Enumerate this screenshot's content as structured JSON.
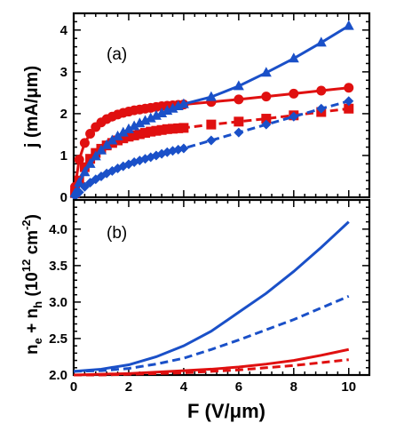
{
  "chart_data": [
    {
      "type": "line",
      "panel_label": "(a)",
      "ylabel": "j  (mA/μm)",
      "xlim": [
        0,
        10.75
      ],
      "ylim": [
        0,
        4.4
      ],
      "yticks": [
        0,
        1,
        2,
        3,
        4
      ],
      "series": [
        {
          "color": "#e01010",
          "marker": "circle",
          "line": "solid",
          "dense": [
            [
              0.05,
              0.25
            ],
            [
              0.2,
              0.9
            ],
            [
              0.4,
              1.3
            ],
            [
              0.6,
              1.52
            ],
            [
              0.8,
              1.68
            ],
            [
              1.0,
              1.79
            ],
            [
              1.2,
              1.87
            ],
            [
              1.4,
              1.93
            ],
            [
              1.6,
              1.98
            ],
            [
              1.8,
              2.02
            ],
            [
              2.0,
              2.05
            ],
            [
              2.2,
              2.08
            ],
            [
              2.4,
              2.1
            ],
            [
              2.6,
              2.12
            ],
            [
              2.8,
              2.14
            ],
            [
              3.0,
              2.16
            ],
            [
              3.2,
              2.18
            ],
            [
              3.4,
              2.19
            ],
            [
              3.6,
              2.2
            ],
            [
              3.8,
              2.21
            ],
            [
              4.0,
              2.22
            ]
          ],
          "sparse": [
            [
              5,
              2.28
            ],
            [
              6,
              2.34
            ],
            [
              7,
              2.41
            ],
            [
              8,
              2.48
            ],
            [
              9,
              2.55
            ],
            [
              10,
              2.62
            ]
          ]
        },
        {
          "color": "#e01010",
          "marker": "square",
          "line": "dashed",
          "dense": [
            [
              0.05,
              0.1
            ],
            [
              0.2,
              0.4
            ],
            [
              0.4,
              0.72
            ],
            [
              0.6,
              0.92
            ],
            [
              0.8,
              1.06
            ],
            [
              1.0,
              1.16
            ],
            [
              1.2,
              1.24
            ],
            [
              1.4,
              1.3
            ],
            [
              1.6,
              1.36
            ],
            [
              1.8,
              1.41
            ],
            [
              2.0,
              1.45
            ],
            [
              2.2,
              1.48
            ],
            [
              2.4,
              1.51
            ],
            [
              2.6,
              1.54
            ],
            [
              2.8,
              1.57
            ],
            [
              3.0,
              1.59
            ],
            [
              3.2,
              1.61
            ],
            [
              3.4,
              1.63
            ],
            [
              3.6,
              1.64
            ],
            [
              3.8,
              1.65
            ],
            [
              4.0,
              1.66
            ]
          ],
          "sparse": [
            [
              5,
              1.74
            ],
            [
              6,
              1.81
            ],
            [
              7,
              1.88
            ],
            [
              8,
              1.96
            ],
            [
              9,
              2.04
            ],
            [
              10,
              2.12
            ]
          ]
        },
        {
          "color": "#1a50c8",
          "marker": "triangle",
          "line": "solid",
          "dense": [
            [
              0.05,
              0.1
            ],
            [
              0.2,
              0.35
            ],
            [
              0.4,
              0.6
            ],
            [
              0.6,
              0.8
            ],
            [
              0.8,
              0.98
            ],
            [
              1.0,
              1.12
            ],
            [
              1.2,
              1.25
            ],
            [
              1.4,
              1.36
            ],
            [
              1.6,
              1.46
            ],
            [
              1.8,
              1.55
            ],
            [
              2.0,
              1.63
            ],
            [
              2.2,
              1.7
            ],
            [
              2.4,
              1.77
            ],
            [
              2.6,
              1.83
            ],
            [
              2.8,
              1.89
            ],
            [
              3.0,
              1.95
            ],
            [
              3.2,
              2.01
            ],
            [
              3.4,
              2.07
            ],
            [
              3.6,
              2.12
            ],
            [
              3.8,
              2.18
            ],
            [
              4.0,
              2.23
            ]
          ],
          "sparse": [
            [
              5,
              2.4
            ],
            [
              6,
              2.66
            ],
            [
              7,
              2.98
            ],
            [
              8,
              3.32
            ],
            [
              9,
              3.7
            ],
            [
              10,
              4.1
            ]
          ]
        },
        {
          "color": "#1a50c8",
          "marker": "diamond",
          "line": "dashed",
          "dense": [
            [
              0.05,
              0.03
            ],
            [
              0.2,
              0.12
            ],
            [
              0.4,
              0.25
            ],
            [
              0.6,
              0.35
            ],
            [
              0.8,
              0.43
            ],
            [
              1.0,
              0.5
            ],
            [
              1.2,
              0.57
            ],
            [
              1.4,
              0.63
            ],
            [
              1.6,
              0.69
            ],
            [
              1.8,
              0.74
            ],
            [
              2.0,
              0.79
            ],
            [
              2.2,
              0.84
            ],
            [
              2.4,
              0.88
            ],
            [
              2.6,
              0.92
            ],
            [
              2.8,
              0.96
            ],
            [
              3.0,
              1.0
            ],
            [
              3.2,
              1.04
            ],
            [
              3.4,
              1.08
            ],
            [
              3.6,
              1.11
            ],
            [
              3.8,
              1.14
            ],
            [
              4.0,
              1.17
            ]
          ],
          "sparse": [
            [
              5,
              1.36
            ],
            [
              6,
              1.55
            ],
            [
              7,
              1.74
            ],
            [
              8,
              1.93
            ],
            [
              9,
              2.12
            ],
            [
              10,
              2.3
            ]
          ]
        }
      ]
    },
    {
      "type": "line",
      "panel_label": "(b)",
      "ylabel": "n",
      "ylim": [
        2.0,
        4.4
      ],
      "yticks": [
        2.0,
        2.5,
        3.0,
        3.5,
        4.0
      ],
      "xlabel": "F  (V/μm)",
      "xticks": [
        0,
        2,
        4,
        6,
        8,
        10
      ],
      "series": [
        {
          "color": "#1a50c8",
          "line": "solid",
          "points": [
            [
              0,
              2.05
            ],
            [
              1,
              2.08
            ],
            [
              2,
              2.14
            ],
            [
              3,
              2.25
            ],
            [
              4,
              2.4
            ],
            [
              5,
              2.6
            ],
            [
              6,
              2.86
            ],
            [
              7,
              3.12
            ],
            [
              8,
              3.42
            ],
            [
              9,
              3.75
            ],
            [
              10,
              4.1
            ]
          ]
        },
        {
          "color": "#1a50c8",
          "line": "dashed",
          "points": [
            [
              0,
              2.05
            ],
            [
              1,
              2.06
            ],
            [
              2,
              2.09
            ],
            [
              3,
              2.15
            ],
            [
              4,
              2.23
            ],
            [
              5,
              2.35
            ],
            [
              6,
              2.48
            ],
            [
              7,
              2.62
            ],
            [
              8,
              2.76
            ],
            [
              9,
              2.92
            ],
            [
              10,
              3.08
            ]
          ]
        },
        {
          "color": "#e01010",
          "line": "solid",
          "points": [
            [
              0,
              2.0
            ],
            [
              1,
              2.01
            ],
            [
              2,
              2.02
            ],
            [
              3,
              2.04
            ],
            [
              4,
              2.06
            ],
            [
              5,
              2.08
            ],
            [
              6,
              2.11
            ],
            [
              7,
              2.15
            ],
            [
              8,
              2.2
            ],
            [
              9,
              2.27
            ],
            [
              10,
              2.35
            ]
          ]
        },
        {
          "color": "#e01010",
          "line": "dashed",
          "points": [
            [
              0,
              2.0
            ],
            [
              1,
              2.0
            ],
            [
              2,
              2.01
            ],
            [
              3,
              2.02
            ],
            [
              4,
              2.03
            ],
            [
              5,
              2.05
            ],
            [
              6,
              2.07
            ],
            [
              7,
              2.1
            ],
            [
              8,
              2.13
            ],
            [
              9,
              2.17
            ],
            [
              10,
              2.21
            ]
          ]
        }
      ]
    }
  ],
  "ylabel_b": {
    "n": "n",
    "e": "e",
    "plus": " + n",
    "h": "h",
    "open": " (10",
    "exp": "12",
    "cm": " cm",
    "neg": "-2",
    "close": ")"
  }
}
